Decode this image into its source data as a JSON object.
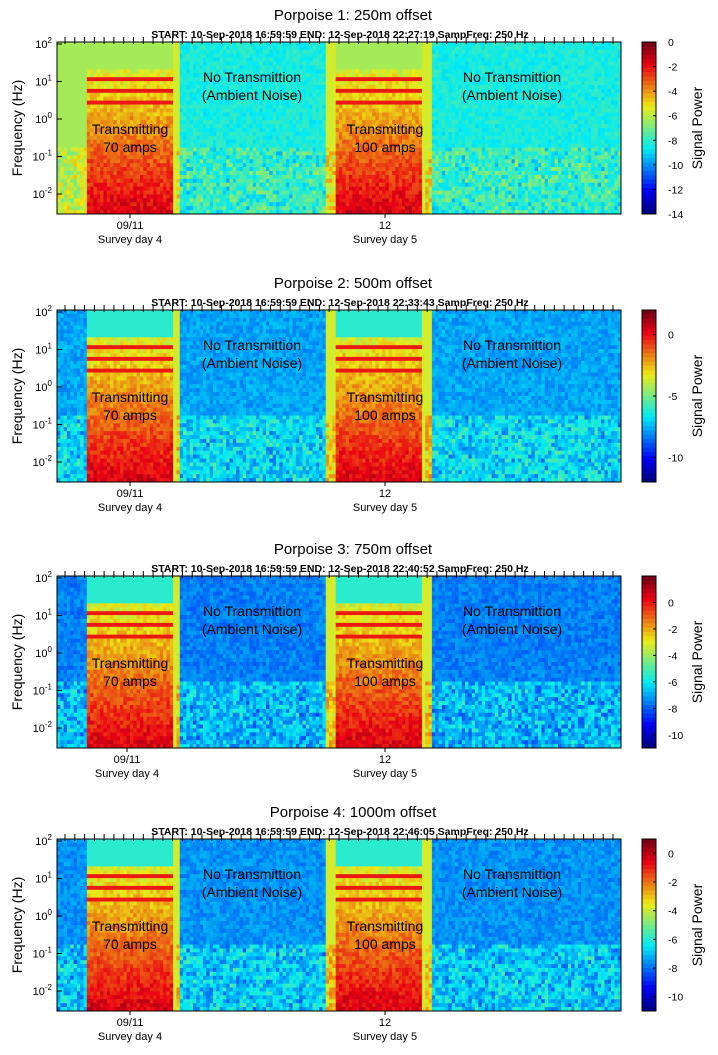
{
  "chart_data": [
    {
      "type": "heatmap",
      "title": "Porpoise 1: 250m offset",
      "subtitle": "START: 10-Sep-2018 16:59:59  END: 12-Sep-2018 22:27:19  SampFreq: 250 Hz",
      "ylabel": "Frequency (Hz)",
      "y_ticks": [
        {
          "base": "10",
          "exp": "-2"
        },
        {
          "base": "10",
          "exp": "-1"
        },
        {
          "base": "10",
          "exp": "0"
        },
        {
          "base": "10",
          "exp": "1"
        },
        {
          "base": "10",
          "exp": "2"
        }
      ],
      "x_ticks": [
        {
          "label": "09/11",
          "sublabel": "Survey day 4"
        },
        {
          "label": "12",
          "sublabel": "Survey day 5"
        }
      ],
      "colorbar": {
        "label": "Signal Power",
        "min": -14,
        "max": 0,
        "ticks": [
          "0",
          "-2",
          "-4",
          "-6",
          "-8",
          "-10",
          "-12",
          "-14"
        ]
      },
      "annotations": {
        "tx1": [
          "Transmitting",
          "70  amps"
        ],
        "amb1": [
          "No Transmittion",
          "(Ambient Noise)"
        ],
        "tx2": [
          "Transmitting",
          "100 amps"
        ],
        "amb2": [
          "No Transmittion",
          "(Ambient Noise)"
        ]
      }
    },
    {
      "type": "heatmap",
      "title": "Porpoise 2: 500m offset",
      "subtitle": "START: 10-Sep-2018 16:59:59  END: 12-Sep-2018 22:33:43  SampFreq: 250 Hz",
      "ylabel": "Frequency (Hz)",
      "y_ticks": [
        {
          "base": "10",
          "exp": "-2"
        },
        {
          "base": "10",
          "exp": "-1"
        },
        {
          "base": "10",
          "exp": "0"
        },
        {
          "base": "10",
          "exp": "1"
        },
        {
          "base": "10",
          "exp": "2"
        }
      ],
      "x_ticks": [
        {
          "label": "09/11",
          "sublabel": "Survey day 4"
        },
        {
          "label": "12",
          "sublabel": "Survey day 5"
        }
      ],
      "colorbar": {
        "label": "Signal Power",
        "min": -12,
        "max": 2,
        "ticks": [
          "0",
          "-5",
          "-10"
        ]
      },
      "annotations": {
        "tx1": [
          "Transmitting",
          "70  amps"
        ],
        "amb1": [
          "No Transmittion",
          "(Ambient Noise)"
        ],
        "tx2": [
          "Transmitting",
          "100 amps"
        ],
        "amb2": [
          "No Transmittion",
          "(Ambient Noise)"
        ]
      }
    },
    {
      "type": "heatmap",
      "title": "Porpoise 3: 750m offset",
      "subtitle": "START: 10-Sep-2018 16:59:59  END: 12-Sep-2018 22:40:52  SampFreq: 250 Hz",
      "ylabel": "Frequency (Hz)",
      "y_ticks": [
        {
          "base": "10",
          "exp": "-2"
        },
        {
          "base": "10",
          "exp": "-1"
        },
        {
          "base": "10",
          "exp": "0"
        },
        {
          "base": "10",
          "exp": "1"
        },
        {
          "base": "10",
          "exp": "2"
        }
      ],
      "x_ticks": [
        {
          "label": "09/11",
          "sublabel": "Survey day 4"
        },
        {
          "label": "12",
          "sublabel": "Survey day 5"
        }
      ],
      "colorbar": {
        "label": "Signal Power",
        "min": -11,
        "max": 2,
        "ticks": [
          "0",
          "-2",
          "-4",
          "-6",
          "-8",
          "-10"
        ]
      },
      "annotations": {
        "tx1": [
          "Transmitting",
          "70  amps"
        ],
        "amb1": [
          "No Transmittion",
          "(Ambient Noise)"
        ],
        "tx2": [
          "Transmitting",
          "100 amps"
        ],
        "amb2": [
          "No Transmittion",
          "(Ambient Noise)"
        ]
      }
    },
    {
      "type": "heatmap",
      "title": "Porpoise 4: 1000m offset",
      "subtitle": "START: 10-Sep-2018 16:59:59  END: 12-Sep-2018 22:46:05  SampFreq: 250 Hz",
      "ylabel": "Frequency (Hz)",
      "y_ticks": [
        {
          "base": "10",
          "exp": "-2"
        },
        {
          "base": "10",
          "exp": "-1"
        },
        {
          "base": "10",
          "exp": "0"
        },
        {
          "base": "10",
          "exp": "1"
        },
        {
          "base": "10",
          "exp": "2"
        }
      ],
      "x_ticks": [
        {
          "label": "09/11",
          "sublabel": "Survey day 4"
        },
        {
          "label": "12",
          "sublabel": "Survey day 5"
        }
      ],
      "colorbar": {
        "label": "Signal Power",
        "min": -11,
        "max": 1,
        "ticks": [
          "0",
          "-2",
          "-4",
          "-6",
          "-8",
          "-10"
        ]
      },
      "annotations": {
        "tx1": [
          "Transmitting",
          "70  amps"
        ],
        "amb1": [
          "No Transmittion",
          "(Ambient Noise)"
        ],
        "tx2": [
          "Transmitting",
          "100 amps"
        ],
        "amb2": [
          "No Transmittion",
          "(Ambient Noise)"
        ]
      }
    }
  ]
}
